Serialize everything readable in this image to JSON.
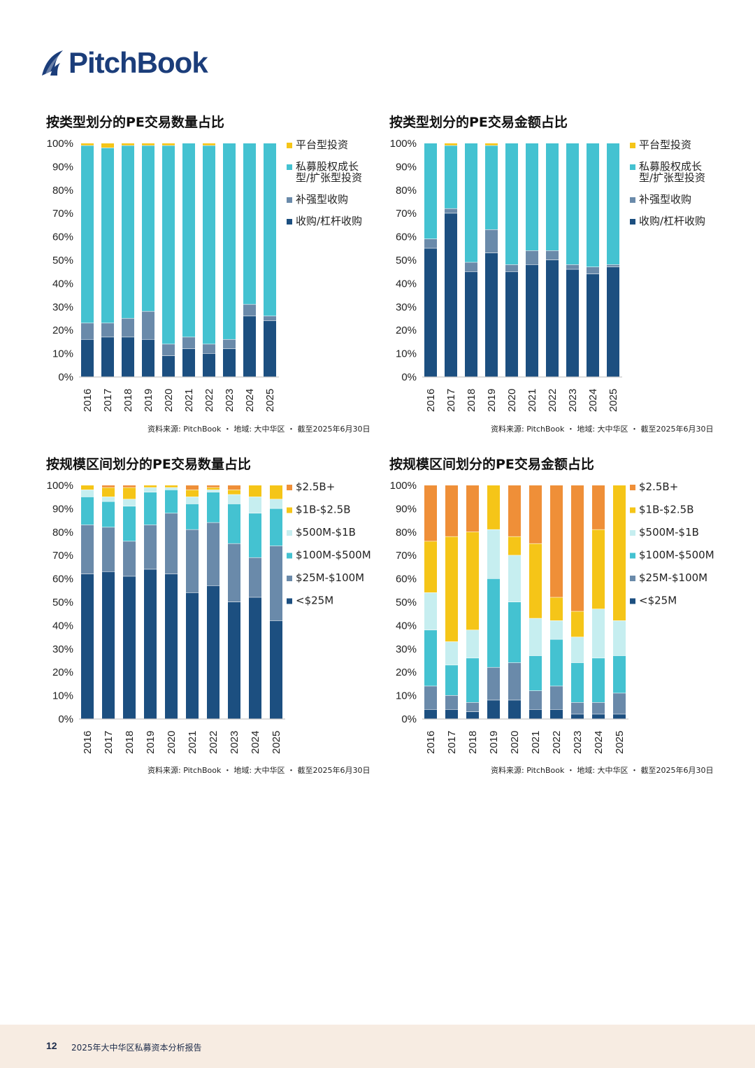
{
  "logo": {
    "text": "PitchBook"
  },
  "footer": {
    "page": "12",
    "title": "2025年大中华区私募资本分析报告"
  },
  "colors": {
    "navy": "#1c4f80",
    "steel": "#6a8aaa",
    "teal": "#44c2d1",
    "yellow": "#f5c518",
    "lightcyan": "#c6eef0",
    "orange": "#ef8f38"
  },
  "chart_data": [
    {
      "type": "bar",
      "stacked": true,
      "title": "按类型划分的PE交易数量占比",
      "source": "资料来源: PitchBook ・ 地域: 大中华区 ・ 截至2025年6月30日",
      "categories": [
        "2016",
        "2017",
        "2018",
        "2019",
        "2020",
        "2021",
        "2022",
        "2023",
        "2024",
        "2025"
      ],
      "yticks": [
        "0%",
        "10%",
        "20%",
        "30%",
        "40%",
        "50%",
        "60%",
        "70%",
        "80%",
        "90%",
        "100%"
      ],
      "ylim": [
        0,
        100
      ],
      "legend_position": "right",
      "series": [
        {
          "name": "收购/杠杆收购",
          "color": "#1c4f80",
          "values": [
            16,
            17,
            17,
            16,
            9,
            12,
            10,
            12,
            26,
            24
          ]
        },
        {
          "name": "补强型收购",
          "color": "#6a8aaa",
          "values": [
            7,
            6,
            8,
            12,
            5,
            5,
            4,
            4,
            5,
            2
          ]
        },
        {
          "name": "私募股权成长型/扩张型投资",
          "color": "#44c2d1",
          "values": [
            76,
            75,
            74,
            71,
            85,
            83,
            85,
            84,
            69,
            74
          ]
        },
        {
          "name": "平台型投资",
          "color": "#f5c518",
          "values": [
            1,
            2,
            1,
            1,
            1,
            0,
            1,
            0,
            0,
            0
          ]
        }
      ],
      "legend": [
        "平台型投资",
        "私募股权成长型/扩张型投资",
        "补强型收购",
        "收购/杠杆收购"
      ]
    },
    {
      "type": "bar",
      "stacked": true,
      "title": "按类型划分的PE交易金额占比",
      "source": "资料来源: PitchBook ・ 地域: 大中华区 ・ 截至2025年6月30日",
      "categories": [
        "2016",
        "2017",
        "2018",
        "2019",
        "2020",
        "2021",
        "2022",
        "2023",
        "2024",
        "2025"
      ],
      "yticks": [
        "0%",
        "10%",
        "20%",
        "30%",
        "40%",
        "50%",
        "60%",
        "70%",
        "80%",
        "90%",
        "100%"
      ],
      "ylim": [
        0,
        100
      ],
      "legend_position": "right",
      "series": [
        {
          "name": "收购/杠杆收购",
          "color": "#1c4f80",
          "values": [
            55,
            70,
            45,
            53,
            45,
            48,
            50,
            46,
            44,
            47
          ]
        },
        {
          "name": "补强型收购",
          "color": "#6a8aaa",
          "values": [
            4,
            2,
            4,
            10,
            3,
            6,
            4,
            2,
            3,
            1
          ]
        },
        {
          "name": "私募股权成长型/扩张型投资",
          "color": "#44c2d1",
          "values": [
            41,
            27,
            51,
            36,
            52,
            46,
            46,
            52,
            53,
            52
          ]
        },
        {
          "name": "平台型投资",
          "color": "#f5c518",
          "values": [
            0,
            1,
            0,
            1,
            0,
            0,
            0,
            0,
            0,
            0
          ]
        }
      ],
      "legend": [
        "平台型投资",
        "私募股权成长型/扩张型投资",
        "补强型收购",
        "收购/杠杆收购"
      ]
    },
    {
      "type": "bar",
      "stacked": true,
      "title": "按规模区间划分的PE交易数量占比",
      "source": "资料来源: PitchBook ・ 地域: 大中华区 ・ 截至2025年6月30日",
      "categories": [
        "2016",
        "2017",
        "2018",
        "2019",
        "2020",
        "2021",
        "2022",
        "2023",
        "2024",
        "2025"
      ],
      "yticks": [
        "0%",
        "10%",
        "20%",
        "30%",
        "40%",
        "50%",
        "60%",
        "70%",
        "80%",
        "90%",
        "100%"
      ],
      "ylim": [
        0,
        100
      ],
      "legend_position": "right",
      "series": [
        {
          "name": "<$25M",
          "color": "#1c4f80",
          "values": [
            62,
            63,
            61,
            64,
            62,
            54,
            57,
            50,
            52,
            42
          ]
        },
        {
          "name": "$25M-$100M",
          "color": "#6a8aaa",
          "values": [
            21,
            19,
            15,
            19,
            26,
            27,
            27,
            25,
            17,
            32
          ]
        },
        {
          "name": "$100M-$500M",
          "color": "#44c2d1",
          "values": [
            12,
            11,
            15,
            14,
            10,
            11,
            13,
            17,
            19,
            16
          ]
        },
        {
          "name": "$500M-$1B",
          "color": "#c6eef0",
          "values": [
            3,
            2,
            3,
            2,
            1,
            3,
            1,
            4,
            7,
            4
          ]
        },
        {
          "name": "$1B-$2.5B",
          "color": "#f5c518",
          "values": [
            2,
            4,
            5,
            1,
            1,
            3,
            1,
            2,
            5,
            6
          ]
        },
        {
          "name": "$2.5B+",
          "color": "#ef8f38",
          "values": [
            0,
            1,
            1,
            0,
            0,
            2,
            1,
            2,
            0,
            0
          ]
        }
      ],
      "legend": [
        "$2.5B+",
        "$1B-$2.5B",
        "$500M-$1B",
        "$100M-$500M",
        "$25M-$100M",
        "<$25M"
      ]
    },
    {
      "type": "bar",
      "stacked": true,
      "title": "按规模区间划分的PE交易金额占比",
      "source": "资料来源: PitchBook ・ 地域: 大中华区 ・ 截至2025年6月30日",
      "categories": [
        "2016",
        "2017",
        "2018",
        "2019",
        "2020",
        "2021",
        "2022",
        "2023",
        "2024",
        "2025"
      ],
      "yticks": [
        "0%",
        "10%",
        "20%",
        "30%",
        "40%",
        "50%",
        "60%",
        "70%",
        "80%",
        "90%",
        "100%"
      ],
      "ylim": [
        0,
        100
      ],
      "legend_position": "right",
      "series": [
        {
          "name": "<$25M",
          "color": "#1c4f80",
          "values": [
            4,
            4,
            3,
            8,
            8,
            4,
            4,
            2,
            2,
            2
          ]
        },
        {
          "name": "$25M-$100M",
          "color": "#6a8aaa",
          "values": [
            10,
            6,
            4,
            14,
            16,
            8,
            10,
            5,
            5,
            9
          ]
        },
        {
          "name": "$100M-$500M",
          "color": "#44c2d1",
          "values": [
            24,
            13,
            19,
            38,
            26,
            15,
            20,
            17,
            19,
            16
          ]
        },
        {
          "name": "$500M-$1B",
          "color": "#c6eef0",
          "values": [
            16,
            10,
            12,
            21,
            20,
            16,
            8,
            11,
            21,
            15
          ]
        },
        {
          "name": "$1B-$2.5B",
          "color": "#f5c518",
          "values": [
            22,
            45,
            42,
            19,
            8,
            32,
            10,
            11,
            34,
            58
          ]
        },
        {
          "name": "$2.5B+",
          "color": "#ef8f38",
          "values": [
            24,
            22,
            20,
            0,
            22,
            25,
            48,
            54,
            19,
            0
          ]
        }
      ],
      "legend": [
        "$2.5B+",
        "$1B-$2.5B",
        "$500M-$1B",
        "$100M-$500M",
        "$25M-$100M",
        "<$25M"
      ]
    }
  ]
}
